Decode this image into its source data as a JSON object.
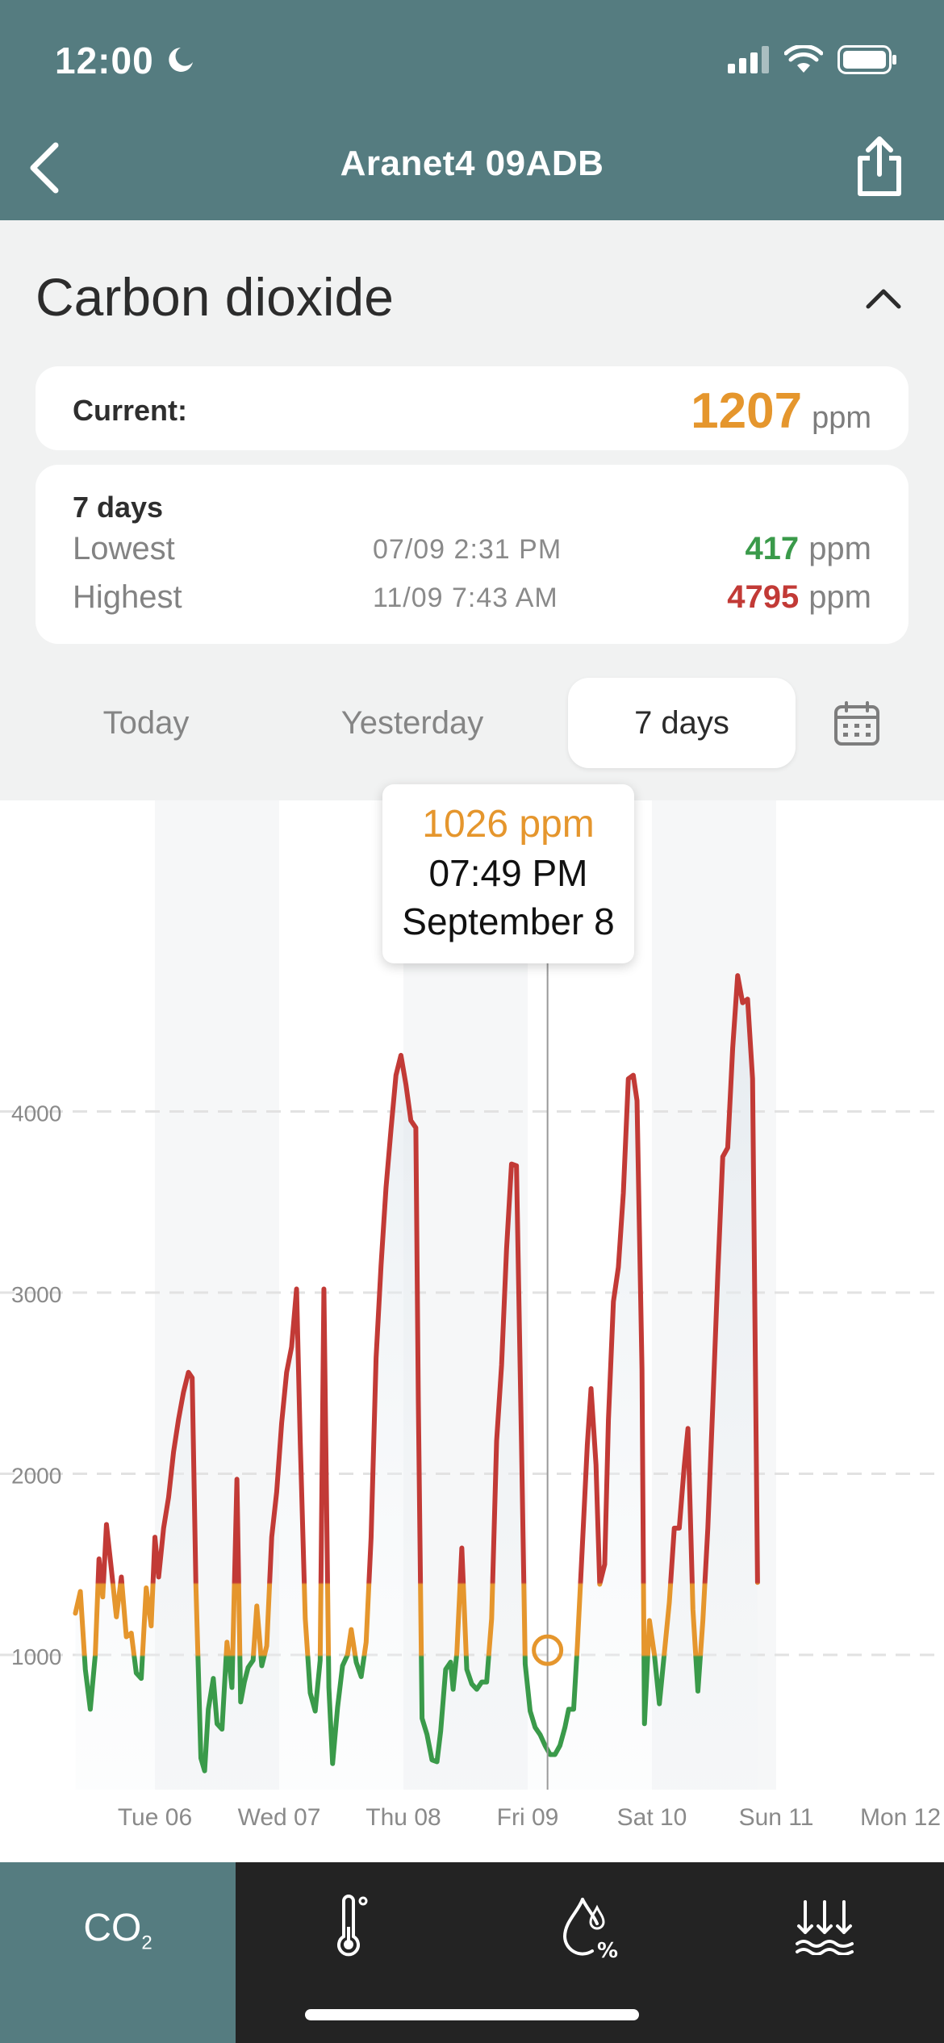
{
  "status_bar": {
    "time": "12:00"
  },
  "nav": {
    "title": "Aranet4 09ADB"
  },
  "section": {
    "title": "Carbon dioxide"
  },
  "current": {
    "label": "Current:",
    "value": "1207",
    "unit": "ppm"
  },
  "stats": {
    "period": "7 days",
    "lowest": {
      "label": "Lowest",
      "time": "07/09 2:31 PM",
      "value": "417",
      "unit": "ppm"
    },
    "highest": {
      "label": "Highest",
      "time": "11/09 7:43 AM",
      "value": "4795",
      "unit": "ppm"
    }
  },
  "tabs": {
    "today": "Today",
    "yesterday": "Yesterday",
    "seven_days": "7 days",
    "active": "7 days"
  },
  "tooltip": {
    "value": "1026 ppm",
    "time": "07:49 PM",
    "date": "September 8"
  },
  "bottom_tabs": {
    "co2_label": "CO",
    "co2_sub": "2"
  },
  "colors": {
    "header": "#557c80",
    "green": "#3a9a4a",
    "orange": "#e5962d",
    "red": "#c23a36"
  },
  "chart_data": {
    "type": "line",
    "yticks": [
      1000,
      2000,
      3000,
      4000
    ],
    "xticks": [
      "Tue 06",
      "Wed 07",
      "Thu 08",
      "Fri 09",
      "Sat 10",
      "Sun 11",
      "Mon 12"
    ],
    "xlim_days": [
      -0.3,
      6.3
    ],
    "ylim": [
      0,
      5500
    ],
    "thresholds": {
      "green_below": 1000,
      "red_above": 1400
    },
    "selected": {
      "x": 3.16,
      "y": 1026
    },
    "series": [
      {
        "points": [
          [
            -0.64,
            1230
          ],
          [
            -0.6,
            1350
          ],
          [
            -0.56,
            920
          ],
          [
            -0.52,
            700
          ],
          [
            -0.48,
            1000
          ],
          [
            -0.45,
            1530
          ],
          [
            -0.42,
            1320
          ],
          [
            -0.39,
            1720
          ],
          [
            -0.35,
            1470
          ],
          [
            -0.31,
            1210
          ],
          [
            -0.27,
            1430
          ],
          [
            -0.23,
            1100
          ],
          [
            -0.19,
            1120
          ],
          [
            -0.15,
            900
          ],
          [
            -0.11,
            870
          ],
          [
            -0.07,
            1370
          ],
          [
            -0.03,
            1160
          ],
          [
            0.0,
            1650
          ],
          [
            0.03,
            1430
          ],
          [
            0.07,
            1700
          ],
          [
            0.11,
            1870
          ],
          [
            0.15,
            2120
          ],
          [
            0.19,
            2300
          ],
          [
            0.23,
            2450
          ],
          [
            0.27,
            2560
          ],
          [
            0.3,
            2530
          ],
          [
            0.33,
            1380
          ],
          [
            0.37,
            430
          ],
          [
            0.4,
            360
          ],
          [
            0.43,
            700
          ],
          [
            0.47,
            870
          ],
          [
            0.5,
            620
          ],
          [
            0.54,
            590
          ],
          [
            0.58,
            1070
          ],
          [
            0.62,
            820
          ],
          [
            0.66,
            1970
          ],
          [
            0.69,
            740
          ],
          [
            0.72,
            850
          ],
          [
            0.75,
            930
          ],
          [
            0.79,
            970
          ],
          [
            0.82,
            1270
          ],
          [
            0.86,
            940
          ],
          [
            0.9,
            1050
          ],
          [
            0.94,
            1650
          ],
          [
            0.98,
            1900
          ],
          [
            1.02,
            2280
          ],
          [
            1.06,
            2560
          ],
          [
            1.1,
            2700
          ],
          [
            1.14,
            3020
          ],
          [
            1.17,
            2170
          ],
          [
            1.21,
            1200
          ],
          [
            1.25,
            790
          ],
          [
            1.29,
            690
          ],
          [
            1.33,
            970
          ],
          [
            1.36,
            3020
          ],
          [
            1.4,
            820
          ],
          [
            1.43,
            400
          ],
          [
            1.47,
            710
          ],
          [
            1.51,
            940
          ],
          [
            1.55,
            1000
          ],
          [
            1.58,
            1140
          ],
          [
            1.62,
            960
          ],
          [
            1.66,
            880
          ],
          [
            1.7,
            1070
          ],
          [
            1.74,
            1650
          ],
          [
            1.78,
            2640
          ],
          [
            1.82,
            3150
          ],
          [
            1.86,
            3580
          ],
          [
            1.9,
            3900
          ],
          [
            1.94,
            4200
          ],
          [
            1.98,
            4310
          ],
          [
            2.02,
            4150
          ],
          [
            2.06,
            3950
          ],
          [
            2.1,
            3910
          ],
          [
            2.12,
            2400
          ],
          [
            2.15,
            650
          ],
          [
            2.19,
            560
          ],
          [
            2.23,
            420
          ],
          [
            2.27,
            410
          ],
          [
            2.3,
            580
          ],
          [
            2.34,
            920
          ],
          [
            2.38,
            960
          ],
          [
            2.4,
            810
          ],
          [
            2.43,
            1010
          ],
          [
            2.47,
            1590
          ],
          [
            2.51,
            920
          ],
          [
            2.55,
            840
          ],
          [
            2.59,
            810
          ],
          [
            2.63,
            850
          ],
          [
            2.67,
            850
          ],
          [
            2.71,
            1200
          ],
          [
            2.75,
            2180
          ],
          [
            2.79,
            2600
          ],
          [
            2.83,
            3240
          ],
          [
            2.87,
            3710
          ],
          [
            2.91,
            3700
          ],
          [
            2.95,
            2180
          ],
          [
            2.98,
            950
          ],
          [
            3.02,
            690
          ],
          [
            3.06,
            600
          ],
          [
            3.1,
            560
          ],
          [
            3.14,
            500
          ],
          [
            3.18,
            450
          ],
          [
            3.22,
            450
          ],
          [
            3.26,
            500
          ],
          [
            3.3,
            600
          ],
          [
            3.33,
            700
          ],
          [
            3.37,
            700
          ],
          [
            3.4,
            1050
          ],
          [
            3.44,
            1600
          ],
          [
            3.48,
            2160
          ],
          [
            3.51,
            2470
          ],
          [
            3.55,
            2050
          ],
          [
            3.58,
            1390
          ],
          [
            3.62,
            1500
          ],
          [
            3.65,
            2300
          ],
          [
            3.69,
            2950
          ],
          [
            3.73,
            3140
          ],
          [
            3.77,
            3550
          ],
          [
            3.81,
            4180
          ],
          [
            3.85,
            4200
          ],
          [
            3.88,
            4060
          ],
          [
            3.92,
            2580
          ],
          [
            3.94,
            620
          ],
          [
            3.98,
            1190
          ],
          [
            4.02,
            1000
          ],
          [
            4.06,
            730
          ],
          [
            4.1,
            1010
          ],
          [
            4.14,
            1290
          ],
          [
            4.18,
            1700
          ],
          [
            4.22,
            1700
          ],
          [
            4.26,
            2040
          ],
          [
            4.29,
            2250
          ],
          [
            4.33,
            1250
          ],
          [
            4.37,
            800
          ],
          [
            4.41,
            1190
          ],
          [
            4.45,
            1700
          ],
          [
            4.49,
            2380
          ],
          [
            4.53,
            3100
          ],
          [
            4.57,
            3750
          ],
          [
            4.61,
            3800
          ],
          [
            4.65,
            4350
          ],
          [
            4.69,
            4750
          ],
          [
            4.73,
            4600
          ],
          [
            4.77,
            4620
          ],
          [
            4.81,
            4180
          ],
          [
            4.85,
            1400
          ]
        ]
      }
    ]
  }
}
